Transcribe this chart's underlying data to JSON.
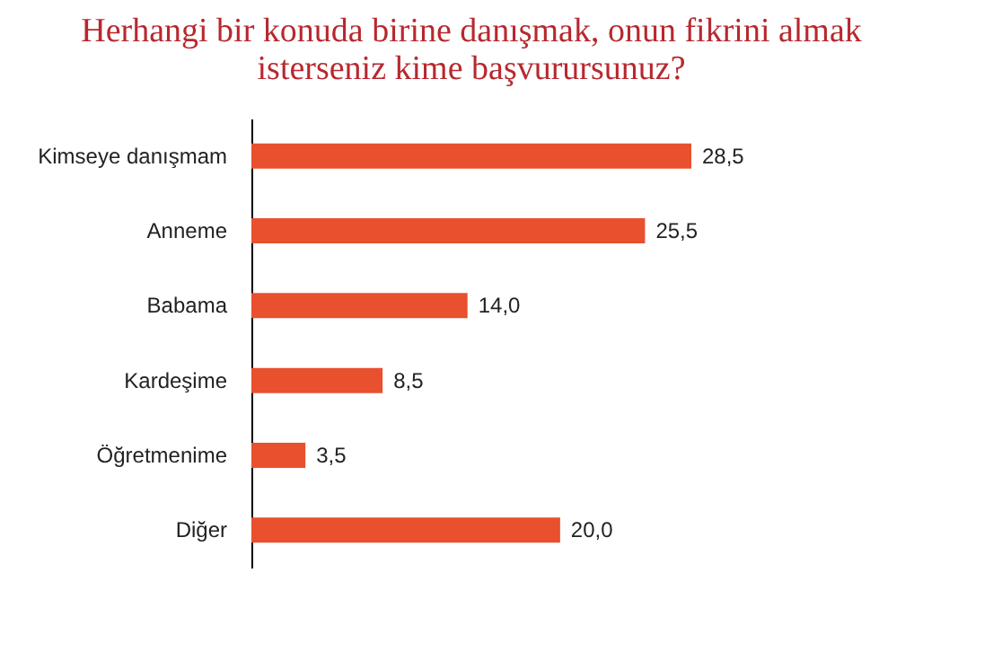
{
  "chart_data": {
    "type": "bar",
    "orientation": "horizontal",
    "title": [
      "Herhangi bir konuda birine danışmak, onun fikrini almak",
      "isterseniz kime başvurursunuz?"
    ],
    "categories": [
      "Kimseye danışmam",
      "Anneme",
      "Babama",
      "Kardeşime",
      "Öğretmenime",
      "Diğer"
    ],
    "values": [
      28.5,
      25.5,
      14.0,
      8.5,
      3.5,
      20.0
    ],
    "value_labels": [
      "28,5",
      "25,5",
      "14,0",
      "8,5",
      "3,5",
      "20,0"
    ],
    "color": "#e8502e"
  }
}
